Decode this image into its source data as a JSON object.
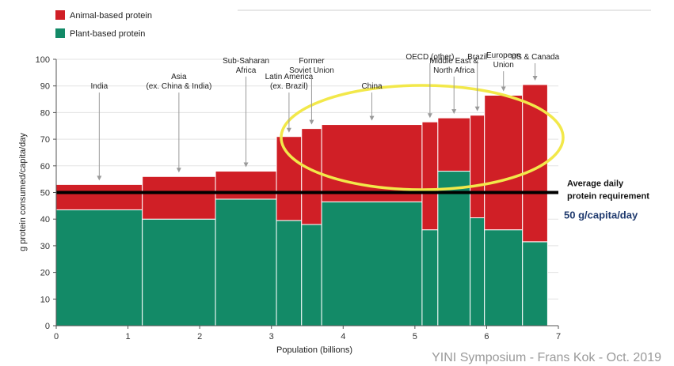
{
  "chart_data": {
    "type": "bar",
    "variant": "variable-width stacked bar (marimekko)",
    "legend": [
      {
        "name": "Animal-based protein",
        "color": "#d01f26"
      },
      {
        "name": "Plant-based protein",
        "color": "#138a67"
      }
    ],
    "legend_position": "top-left",
    "xlabel": "Population (billions)",
    "ylabel": "g protein consumed/capita/day",
    "xlim": [
      0,
      7
    ],
    "ylim": [
      0,
      100
    ],
    "x_ticks": [
      "0",
      "1",
      "2",
      "3",
      "4",
      "5",
      "6",
      "7"
    ],
    "y_ticks": [
      "0",
      "10",
      "20",
      "30",
      "40",
      "50",
      "60",
      "70",
      "80",
      "90",
      "100"
    ],
    "grid": "horizontal",
    "regions": [
      {
        "label": [
          "India"
        ],
        "x_start": 0.0,
        "x_end": 1.2,
        "plant": 43.5,
        "total": 53,
        "label_value": 89
      },
      {
        "label": [
          "Asia",
          "(ex. China & India)"
        ],
        "x_start": 1.2,
        "x_end": 2.22,
        "plant": 40,
        "total": 56,
        "label_value": 89
      },
      {
        "label": [
          "Sub-Saharan",
          "Africa"
        ],
        "x_start": 2.22,
        "x_end": 3.07,
        "plant": 47.5,
        "total": 58,
        "label_value": 95
      },
      {
        "label": [
          "Latin America",
          "(ex. Brazil)"
        ],
        "x_start": 3.07,
        "x_end": 3.42,
        "plant": 39.5,
        "total": 71,
        "label_value": 89
      },
      {
        "label": [
          "Former",
          "Soviet Union"
        ],
        "x_start": 3.42,
        "x_end": 3.7,
        "plant": 38,
        "total": 74,
        "label_value": 95
      },
      {
        "label": [
          "China"
        ],
        "x_start": 3.7,
        "x_end": 5.1,
        "plant": 46.5,
        "total": 75.5,
        "label_value": 89
      },
      {
        "label": [
          "OECD (other)"
        ],
        "x_start": 5.1,
        "x_end": 5.32,
        "plant": 36,
        "total": 76.5,
        "label_value": 100
      },
      {
        "label": [
          "Middle East &",
          "North Africa"
        ],
        "x_start": 5.32,
        "x_end": 5.77,
        "plant": 58,
        "total": 78,
        "label_value": 95
      },
      {
        "label": [
          "Brazil"
        ],
        "x_start": 5.77,
        "x_end": 5.97,
        "plant": 40.5,
        "total": 79,
        "label_value": 100
      },
      {
        "label": [
          "European",
          "Union"
        ],
        "x_start": 5.97,
        "x_end": 6.5,
        "plant": 36,
        "total": 86.5,
        "label_value": 97
      },
      {
        "label": [
          "US & Canada"
        ],
        "x_start": 6.5,
        "x_end": 6.85,
        "plant": 31.5,
        "total": 90.5,
        "label_value": 100
      }
    ],
    "reference_line": {
      "y": 50,
      "labels": [
        "Average daily",
        "protein requirement"
      ],
      "value_label": "50 g/capita/day"
    },
    "highlight_ellipse": {
      "color": "#f2e84a"
    }
  },
  "footer": "YINI Symposium - Frans Kok - Oct. 2019"
}
